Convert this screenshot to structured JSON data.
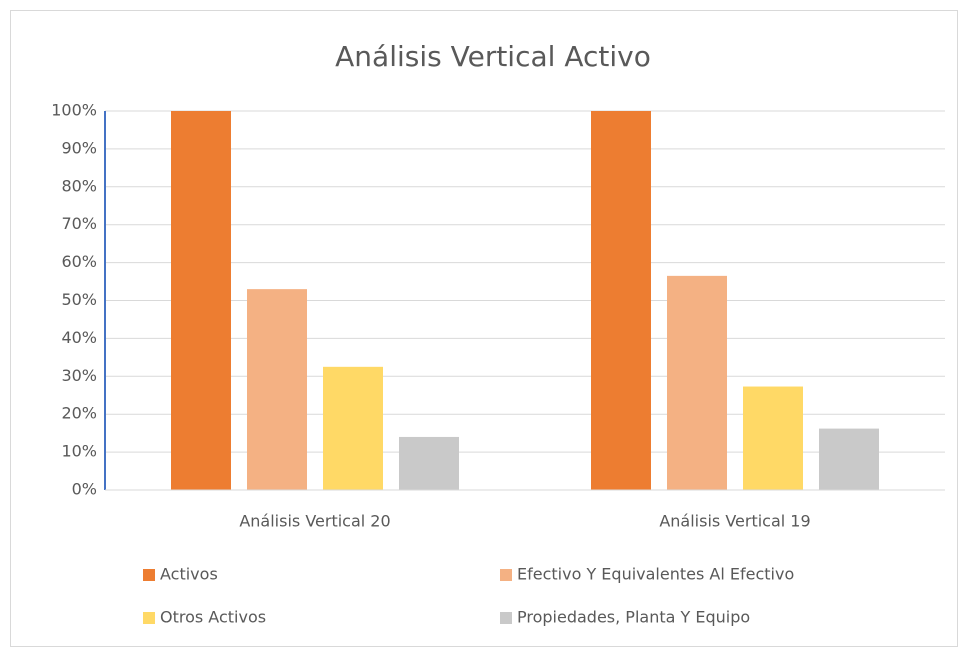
{
  "chart_data": {
    "type": "bar",
    "title": "Análisis Vertical Activo",
    "categories": [
      "Análisis Vertical 20",
      "Análisis Vertical 19"
    ],
    "series": [
      {
        "name": "Activos",
        "color": "#ed7d31",
        "values": [
          100,
          100
        ]
      },
      {
        "name": "Efectivo Y Equivalentes Al Efectivo",
        "color": "#f4b183",
        "values": [
          53,
          56.5
        ]
      },
      {
        "name": "Otros Activos",
        "color": "#ffd966",
        "values": [
          32.5,
          27.3
        ]
      },
      {
        "name": "Propiedades, Planta Y Equipo",
        "color": "#c9c9c9",
        "values": [
          14,
          16.2
        ]
      }
    ],
    "ylim": [
      0,
      100
    ],
    "yticks": [
      {
        "value": 0,
        "label": "0%"
      },
      {
        "value": 10,
        "label": "10%"
      },
      {
        "value": 20,
        "label": "20%"
      },
      {
        "value": 30,
        "label": "30%"
      },
      {
        "value": 40,
        "label": "40%"
      },
      {
        "value": 50,
        "label": "50%"
      },
      {
        "value": 60,
        "label": "60%"
      },
      {
        "value": 70,
        "label": "70%"
      },
      {
        "value": 80,
        "label": "80%"
      },
      {
        "value": 90,
        "label": "90%"
      },
      {
        "value": 100,
        "label": "100%"
      }
    ],
    "grid": true,
    "legend": "bottom"
  }
}
